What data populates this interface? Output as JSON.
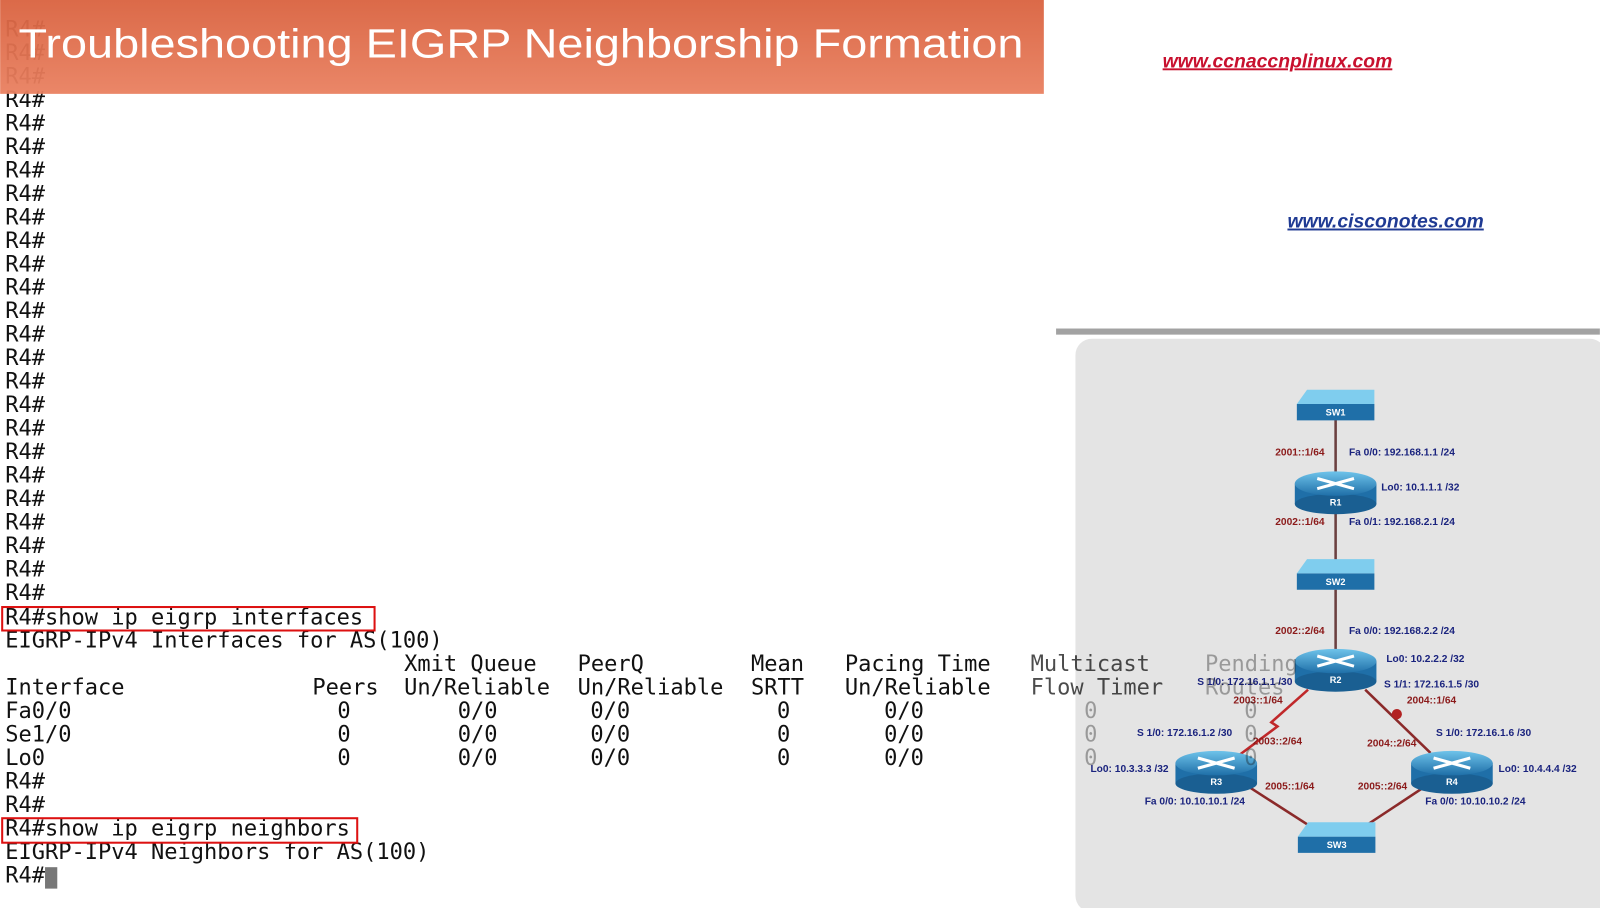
{
  "header": {
    "title": "Troubleshooting EIGRP Neighborship Formation"
  },
  "links": {
    "url1": "www.ccnaccnplinux.com",
    "url2": "www.cisconotes.com"
  },
  "terminal": {
    "prompts": [
      "R4#",
      "R4#",
      "R4#",
      "R4#",
      "R4#",
      "R4#",
      "R4#",
      "R4#",
      "R4#",
      "R4#",
      "R4#",
      "R4#",
      "R4#",
      "R4#",
      "R4#",
      "R4#",
      "R4#",
      "R4#",
      "R4#",
      "R4#",
      "R4#",
      "R4#",
      "R4#",
      "R4#",
      "R4#"
    ],
    "command1": "R4#show ip eigrp interfaces",
    "output1": "EIGRP-IPv4 Interfaces for AS(100)",
    "columns": [
      {
        "lines": [
          "Interface"
        ]
      },
      {
        "lines": [
          "Peers"
        ]
      },
      {
        "lines": [
          "Xmit Queue",
          "Un/Reliable"
        ]
      },
      {
        "lines": [
          "PeerQ",
          "Un/Reliable"
        ]
      },
      {
        "lines": [
          "Mean",
          "SRTT"
        ]
      },
      {
        "lines": [
          "Pacing Time",
          "Un/Reliable"
        ]
      },
      {
        "lines": [
          "Multicast",
          "Flow Timer"
        ]
      },
      {
        "lines": [
          "Pending",
          "Routes"
        ]
      }
    ],
    "rows": [
      [
        "Fa0/0",
        0,
        "0/0",
        "0/0",
        0,
        "0/0",
        0,
        0
      ],
      [
        "Se1/0",
        0,
        "0/0",
        "0/0",
        0,
        "0/0",
        0,
        0
      ],
      [
        "Lo0",
        0,
        "0/0",
        "0/0",
        0,
        "0/0",
        0,
        0
      ]
    ],
    "after_prompts": [
      "R4#",
      "R4#"
    ],
    "command2": "R4#show ip eigrp neighbors",
    "output2": "EIGRP-IPv4 Neighbors for AS(100)",
    "final_prompt": "R4#"
  },
  "diagram": {
    "devices": [
      "SW1",
      "R1",
      "SW2",
      "R2",
      "R3",
      "R4",
      "SW3"
    ],
    "labels": [
      "2001::1/64",
      "Fa 0/0: 192.168.1.1 /24",
      "Lo0: 10.1.1.1 /32",
      "2002::1/64",
      "Fa 0/1: 192.168.2.1 /24",
      "2002::2/64",
      "Fa 0/0: 192.168.2.2 /24",
      "Lo0: 10.2.2.2 /32",
      "S 1/0: 172.16.1.1 /30",
      "2003::1/64",
      "S 1/1: 172.16.1.5 /30",
      "2004::1/64",
      "S 1/0: 172.16.1.2 /30",
      "2003::2/64",
      "2004::2/64",
      "S 1/0: 172.16.1.6 /30",
      "Lo0: 10.3.3.3 /32",
      "Lo0: 10.4.4.4 /32",
      "2005::1/64",
      "2005::2/64",
      "Fa 0/0: 10.10.10.1 /24",
      "Fa 0/0: 10.10.10.2 /24"
    ]
  }
}
